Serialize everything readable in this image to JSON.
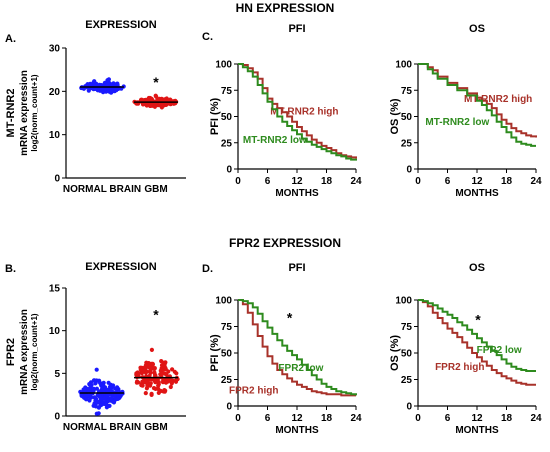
{
  "figure": {
    "hn_header": "HN EXPRESSION",
    "fpr2_header": "FPR2 EXPRESSION"
  },
  "chart_data": [
    {
      "panel": "A.",
      "type": "scatter",
      "title": "EXPRESSION",
      "ylabel_lines": [
        "MT-RNR2",
        "mRNA expression",
        "log2(norm_count+1)"
      ],
      "categories": [
        "NORMAL BRAIN",
        "GBM"
      ],
      "ylim": [
        0,
        30
      ],
      "yticks": [
        0,
        10,
        20,
        30
      ],
      "series": [
        {
          "color": "#1a1aff",
          "median": 21.0,
          "spread": 1.2,
          "min": 19.0,
          "max": 23.5,
          "n": 120
        },
        {
          "color": "#e01515",
          "median": 17.5,
          "spread": 0.9,
          "min": 15.8,
          "max": 19.6,
          "n": 120
        }
      ],
      "annotation": "*"
    },
    {
      "panel": "B.",
      "type": "scatter",
      "title": "EXPRESSION",
      "ylabel_lines": [
        "FPR2",
        "mRNA expression",
        "log2(norm_count+1)"
      ],
      "categories": [
        "NORMAL BRAIN",
        "GBM"
      ],
      "ylim": [
        0,
        15
      ],
      "yticks": [
        0,
        5,
        10,
        15
      ],
      "series": [
        {
          "color": "#1a1aff",
          "median": 2.7,
          "spread": 1.3,
          "min": 0.0,
          "max": 9.0,
          "n": 170
        },
        {
          "color": "#e01515",
          "median": 4.5,
          "spread": 1.8,
          "min": 0.3,
          "max": 10.6,
          "n": 140
        }
      ],
      "annotation": "*"
    },
    {
      "panel": "C.",
      "type": "line",
      "title": "PFI",
      "ylabel": "PFI (%)",
      "xlabel": "MONTHS",
      "xlim": [
        0,
        24
      ],
      "ylim": [
        0,
        100
      ],
      "xticks": [
        0,
        6,
        12,
        18,
        24
      ],
      "yticks": [
        0,
        25,
        50,
        75,
        100
      ],
      "series": [
        {
          "name": "MT-RNR2 high",
          "color": "#a8322a",
          "x": [
            0,
            1,
            2,
            3,
            4,
            5,
            6,
            7,
            8,
            9,
            10,
            11,
            12,
            13,
            14,
            15,
            16,
            17,
            18,
            19,
            20,
            21,
            22,
            23,
            24
          ],
          "y": [
            100,
            99,
            96,
            92,
            86,
            77,
            67,
            62,
            58,
            54,
            50,
            45,
            40,
            36,
            32,
            28,
            25,
            22,
            20,
            18,
            15,
            13,
            12,
            11,
            10
          ]
        },
        {
          "name": "MT-RNR2 low",
          "color": "#2e8b1e",
          "x": [
            0,
            1,
            2,
            3,
            4,
            5,
            6,
            7,
            8,
            9,
            10,
            11,
            12,
            13,
            14,
            15,
            16,
            17,
            18,
            19,
            20,
            21,
            22,
            23,
            24
          ],
          "y": [
            100,
            97,
            93,
            88,
            80,
            72,
            64,
            57,
            50,
            45,
            41,
            37,
            33,
            29,
            26,
            23,
            21,
            19,
            17,
            15,
            13,
            12,
            10,
            9,
            8
          ]
        }
      ],
      "label_positions": [
        {
          "x": 13.5,
          "y": 52
        },
        {
          "x": 7.5,
          "y": 25
        }
      ]
    },
    {
      "panel": "",
      "type": "line",
      "title": "OS",
      "ylabel": "OS (%)",
      "xlabel": "MONTHS",
      "xlim": [
        0,
        24
      ],
      "ylim": [
        0,
        100
      ],
      "xticks": [
        0,
        6,
        12,
        18,
        24
      ],
      "yticks": [
        0,
        25,
        50,
        75,
        100
      ],
      "series": [
        {
          "name": "MT-RNR2 high",
          "color": "#a8322a",
          "x": [
            0,
            2,
            3,
            4,
            6,
            8,
            10,
            12,
            13,
            14,
            15,
            16,
            17,
            18,
            19,
            20,
            21,
            22,
            23,
            24
          ],
          "y": [
            100,
            97,
            94,
            88,
            82,
            77,
            72,
            68,
            65,
            62,
            58,
            52,
            47,
            43,
            39,
            36,
            34,
            32,
            31,
            30
          ]
        },
        {
          "name": "MT-RNR2 low",
          "color": "#2e8b1e",
          "x": [
            0,
            2,
            3,
            4,
            6,
            8,
            10,
            12,
            13,
            14,
            15,
            16,
            17,
            18,
            19,
            20,
            21,
            22,
            23,
            24
          ],
          "y": [
            100,
            95,
            91,
            86,
            80,
            75,
            70,
            65,
            61,
            56,
            51,
            45,
            40,
            35,
            30,
            26,
            24,
            23,
            22,
            22
          ]
        }
      ],
      "label_positions": [
        {
          "x": 16.3,
          "y": 64
        },
        {
          "x": 8,
          "y": 42
        }
      ]
    },
    {
      "panel": "D.",
      "type": "line",
      "title": "PFI",
      "ylabel": "PFI (%)",
      "xlabel": "MONTHS",
      "xlim": [
        0,
        24
      ],
      "ylim": [
        0,
        100
      ],
      "xticks": [
        0,
        6,
        12,
        18,
        24
      ],
      "yticks": [
        0,
        25,
        50,
        75,
        100
      ],
      "annotation": "*",
      "annotation_at": {
        "x": 10.5,
        "y": 79
      },
      "series": [
        {
          "name": "FPR2 high",
          "color": "#a8322a",
          "x": [
            0,
            1,
            2,
            3,
            4,
            5,
            6,
            7,
            8,
            9,
            10,
            11,
            12,
            13,
            14,
            15,
            16,
            17,
            18,
            19,
            20,
            21,
            22,
            23,
            24
          ],
          "y": [
            100,
            96,
            88,
            77,
            66,
            56,
            47,
            40,
            34,
            30,
            26,
            23,
            20,
            18,
            16,
            14,
            13,
            12,
            11,
            11,
            11,
            10,
            10,
            10,
            10
          ]
        },
        {
          "name": "FPR2 low",
          "color": "#2e8b1e",
          "x": [
            0,
            1,
            2,
            3,
            4,
            5,
            6,
            7,
            8,
            9,
            10,
            11,
            12,
            13,
            14,
            15,
            16,
            17,
            18,
            19,
            20,
            21,
            22,
            23,
            24
          ],
          "y": [
            100,
            99,
            97,
            93,
            87,
            80,
            74,
            68,
            62,
            57,
            52,
            48,
            44,
            39,
            34,
            29,
            25,
            21,
            18,
            16,
            14,
            13,
            12,
            11,
            10
          ]
        }
      ],
      "label_positions": [
        {
          "x": 3.2,
          "y": 12
        },
        {
          "x": 12.8,
          "y": 33
        }
      ]
    },
    {
      "panel": "",
      "type": "line",
      "title": "OS",
      "ylabel": "OS (%)",
      "xlabel": "MONTHS",
      "xlim": [
        0,
        24
      ],
      "ylim": [
        0,
        100
      ],
      "xticks": [
        0,
        6,
        12,
        18,
        24
      ],
      "yticks": [
        0,
        25,
        50,
        75,
        100
      ],
      "annotation": "*",
      "annotation_at": {
        "x": 12.2,
        "y": 77
      },
      "series": [
        {
          "name": "FPR2 high",
          "color": "#a8322a",
          "x": [
            0,
            1,
            2,
            3,
            4,
            5,
            6,
            7,
            8,
            9,
            10,
            11,
            12,
            13,
            14,
            15,
            16,
            17,
            18,
            19,
            20,
            21,
            22,
            23,
            24
          ],
          "y": [
            100,
            98,
            94,
            88,
            83,
            78,
            73,
            69,
            65,
            60,
            55,
            50,
            46,
            42,
            38,
            34,
            31,
            28,
            26,
            24,
            22,
            21,
            20,
            20,
            20
          ]
        },
        {
          "name": "FPR2 low",
          "color": "#2e8b1e",
          "x": [
            0,
            1,
            2,
            3,
            4,
            5,
            6,
            7,
            8,
            9,
            10,
            11,
            12,
            13,
            14,
            15,
            16,
            17,
            18,
            19,
            20,
            21,
            22,
            23,
            24
          ],
          "y": [
            100,
            99,
            97,
            95,
            92,
            89,
            86,
            83,
            79,
            76,
            72,
            68,
            64,
            60,
            56,
            52,
            48,
            44,
            40,
            37,
            35,
            34,
            33,
            33,
            33
          ]
        }
      ],
      "label_positions": [
        {
          "x": 8.5,
          "y": 34
        },
        {
          "x": 16.5,
          "y": 50
        }
      ]
    }
  ]
}
